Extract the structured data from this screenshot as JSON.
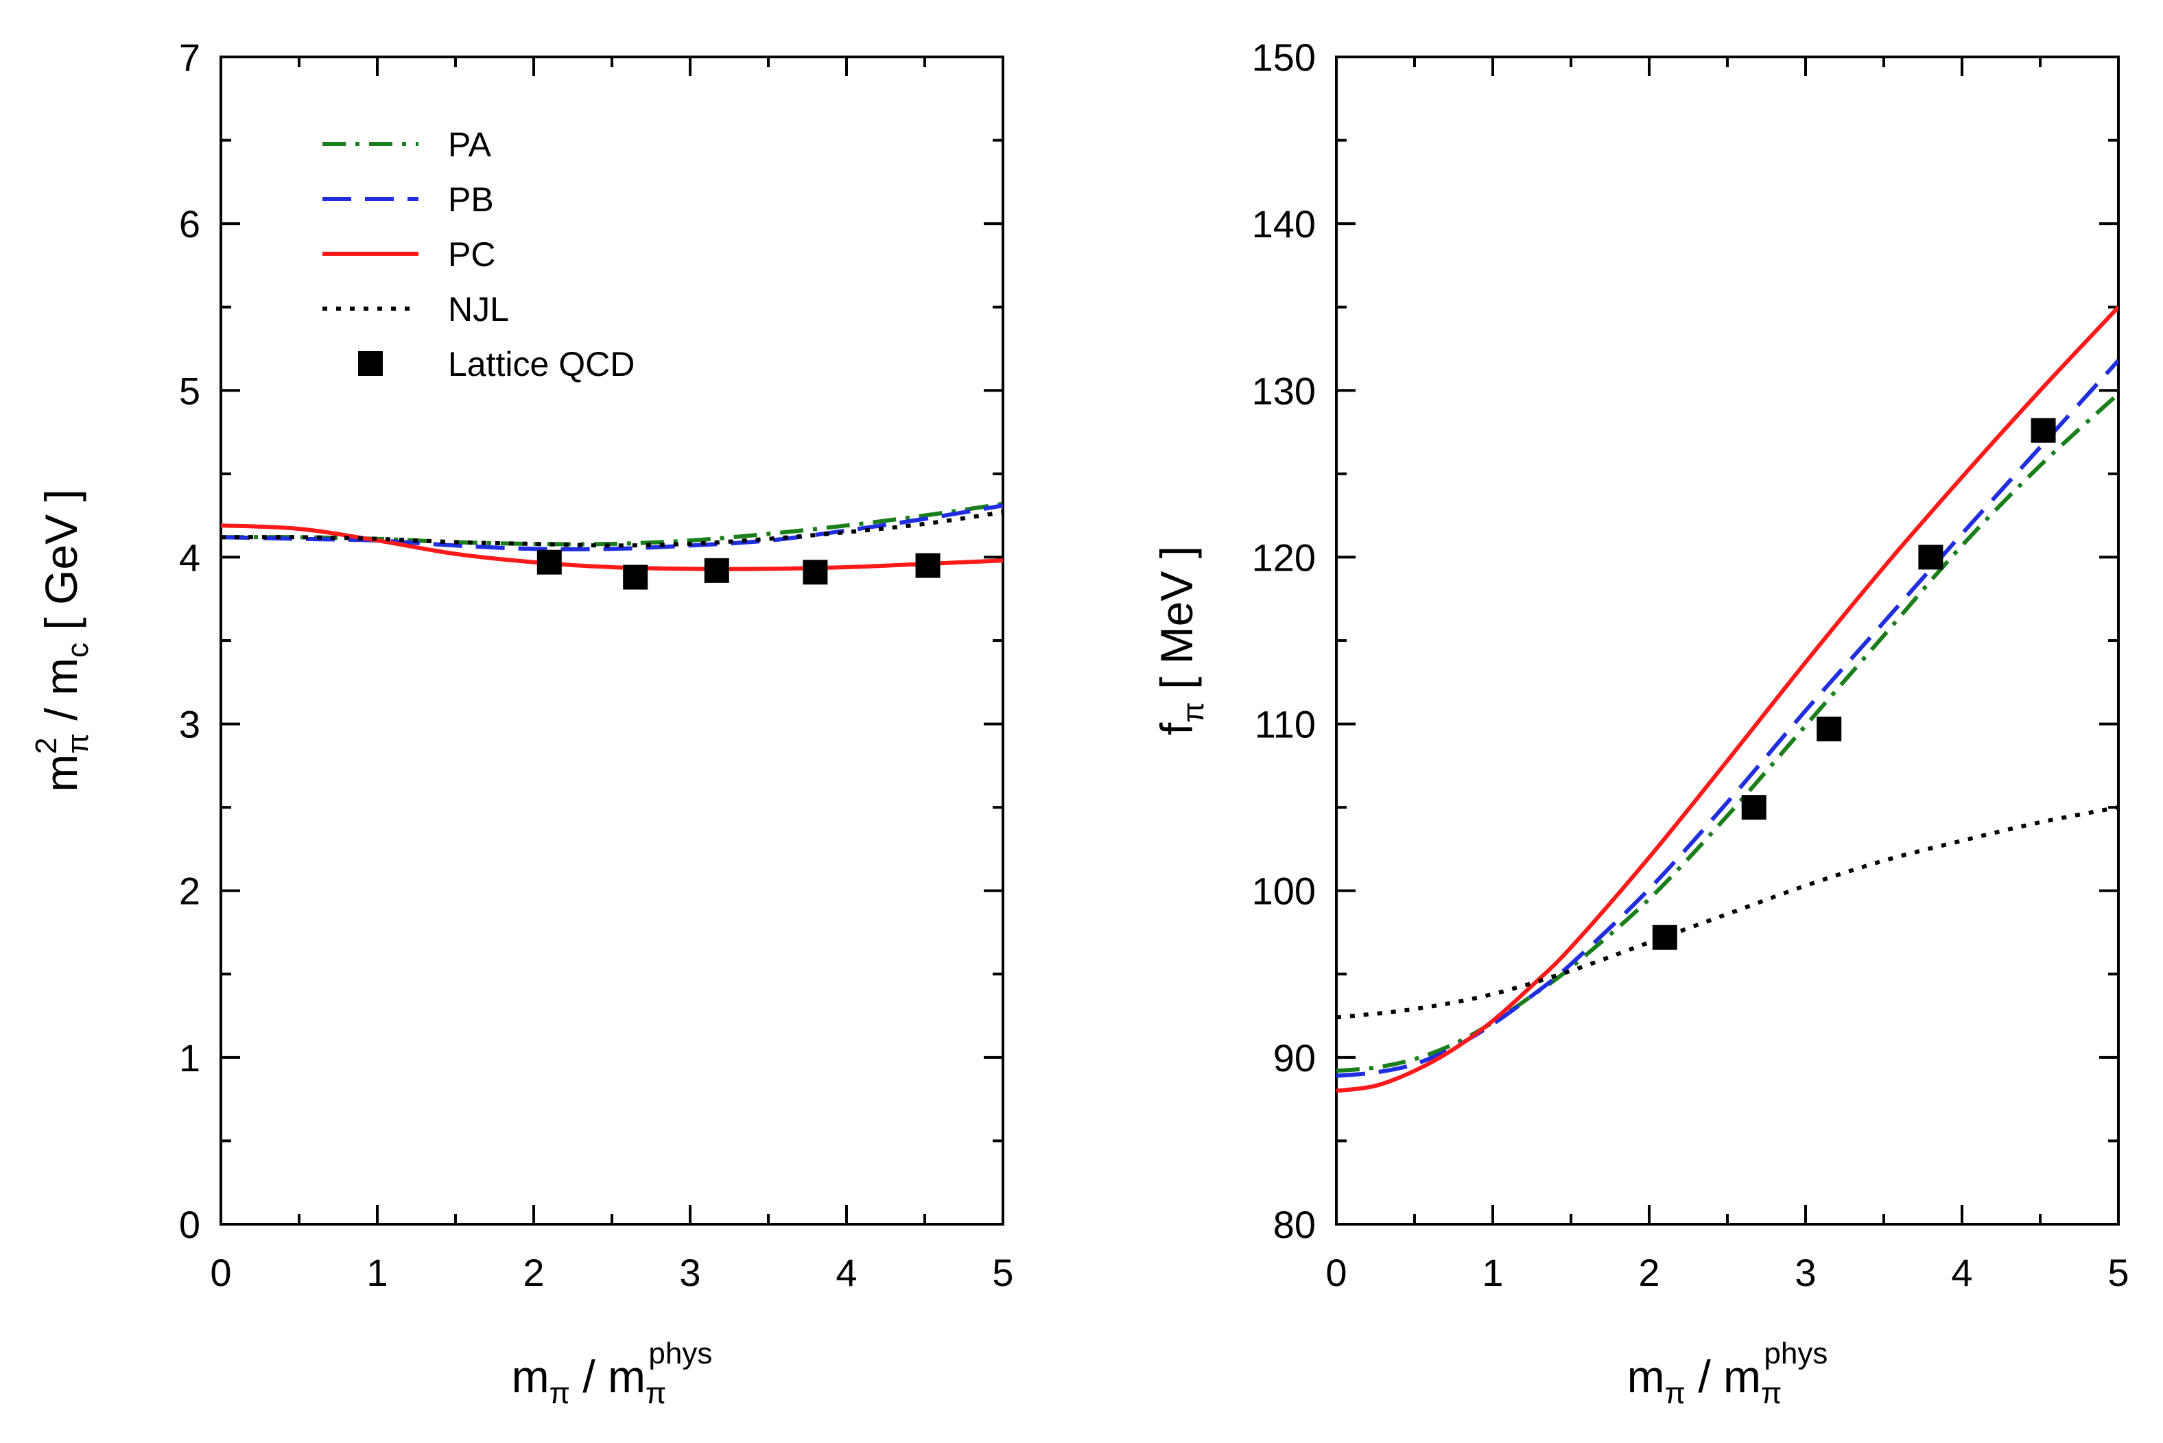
{
  "chart_data": [
    {
      "type": "line",
      "panel": "left",
      "xlabel": {
        "base": "m",
        "sub": "π",
        "slash": "/",
        "base2": "m",
        "sub2": "π",
        "sup2": "phys"
      },
      "ylabel": {
        "base": "m",
        "sup": "2",
        "sub": "π",
        "slash": "/",
        "base2": "m",
        "sub2": "c",
        "unit": "[ GeV ]"
      },
      "xlim": [
        0,
        5
      ],
      "ylim": [
        0,
        7
      ],
      "xticks": [
        "0",
        "1",
        "2",
        "3",
        "4",
        "5"
      ],
      "yticks": [
        "0",
        "1",
        "2",
        "3",
        "4",
        "5",
        "6",
        "7"
      ],
      "grid": false,
      "legend_position": "top-left",
      "legend": [
        {
          "key": "PA",
          "label": "PA"
        },
        {
          "key": "PB",
          "label": "PB"
        },
        {
          "key": "PC",
          "label": "PC"
        },
        {
          "key": "NJL",
          "label": "NJL"
        },
        {
          "key": "LQCD",
          "label": "Lattice QCD"
        }
      ],
      "series": [
        {
          "key": "PA",
          "name": "PA",
          "style": "dashdot",
          "color": "#1a7f1a",
          "x": [
            0,
            0.5,
            1,
            1.5,
            2,
            2.5,
            3,
            3.5,
            4,
            4.5,
            5
          ],
          "y": [
            4.12,
            4.12,
            4.11,
            4.09,
            4.08,
            4.08,
            4.1,
            4.14,
            4.19,
            4.25,
            4.32
          ]
        },
        {
          "key": "PB",
          "name": "PB",
          "style": "dashed",
          "color": "#1f2fe0",
          "x": [
            0,
            0.5,
            1,
            1.5,
            2,
            2.5,
            3,
            3.5,
            4,
            4.5,
            5
          ],
          "y": [
            4.12,
            4.11,
            4.1,
            4.07,
            4.05,
            4.05,
            4.07,
            4.1,
            4.16,
            4.23,
            4.31
          ]
        },
        {
          "key": "PC",
          "name": "PC",
          "style": "solid",
          "color": "#ff1a1a",
          "x": [
            0,
            0.5,
            1,
            1.5,
            2,
            2.5,
            3,
            3.5,
            4,
            4.5,
            5
          ],
          "y": [
            4.19,
            4.17,
            4.1,
            4.02,
            3.97,
            3.94,
            3.93,
            3.93,
            3.94,
            3.96,
            3.98
          ]
        },
        {
          "key": "NJL",
          "name": "NJL",
          "style": "dotted",
          "color": "#000000",
          "x": [
            0,
            0.5,
            1,
            1.5,
            2,
            2.5,
            3,
            3.5,
            4,
            4.5,
            5
          ],
          "y": [
            4.12,
            4.12,
            4.11,
            4.09,
            4.08,
            4.07,
            4.08,
            4.11,
            4.15,
            4.2,
            4.27
          ]
        },
        {
          "key": "LQCD",
          "name": "Lattice QCD",
          "style": "marker-square",
          "color": "#000000",
          "x": [
            2.1,
            2.65,
            3.17,
            3.8,
            4.52
          ],
          "y": [
            3.97,
            3.88,
            3.92,
            3.91,
            3.95
          ]
        }
      ]
    },
    {
      "type": "line",
      "panel": "right",
      "xlabel": {
        "base": "m",
        "sub": "π",
        "slash": "/",
        "base2": "m",
        "sub2": "π",
        "sup2": "phys"
      },
      "ylabel": {
        "base": "f",
        "sub": "π",
        "unit": "[ MeV ]"
      },
      "xlim": [
        0,
        5
      ],
      "ylim": [
        80,
        150
      ],
      "xticks": [
        "0",
        "1",
        "2",
        "3",
        "4",
        "5"
      ],
      "yticks": [
        "80",
        "90",
        "100",
        "110",
        "120",
        "130",
        "140",
        "150"
      ],
      "grid": false,
      "series": [
        {
          "key": "PA",
          "name": "PA",
          "style": "dashdot",
          "color": "#1a7f1a",
          "x": [
            0,
            0.25,
            0.5,
            0.75,
            1,
            1.25,
            1.5,
            2,
            2.5,
            3,
            3.5,
            4,
            4.5,
            5
          ],
          "y": [
            89.2,
            89.4,
            89.9,
            90.8,
            92.1,
            93.7,
            95.4,
            99.5,
            104.5,
            109.9,
            115.3,
            120.7,
            125.5,
            129.8
          ]
        },
        {
          "key": "PB",
          "name": "PB",
          "style": "dashed",
          "color": "#1f2fe0",
          "x": [
            0,
            0.25,
            0.5,
            0.75,
            1,
            1.25,
            1.5,
            2,
            2.5,
            3,
            3.5,
            4,
            4.5,
            5
          ],
          "y": [
            88.9,
            89.1,
            89.6,
            90.6,
            92.0,
            93.7,
            95.6,
            100.1,
            105.3,
            110.8,
            116.1,
            121.4,
            126.6,
            131.8
          ]
        },
        {
          "key": "PC",
          "name": "PC",
          "style": "solid",
          "color": "#ff1a1a",
          "x": [
            0,
            0.25,
            0.5,
            0.75,
            1,
            1.25,
            1.5,
            2,
            2.5,
            3,
            3.5,
            4,
            4.5,
            5
          ],
          "y": [
            88.0,
            88.3,
            89.2,
            90.5,
            92.2,
            94.3,
            96.6,
            102.0,
            107.8,
            113.7,
            119.4,
            124.8,
            130.0,
            135.0
          ]
        },
        {
          "key": "NJL",
          "name": "NJL",
          "style": "dotted",
          "color": "#000000",
          "x": [
            0,
            0.5,
            1,
            1.5,
            2,
            2.5,
            3,
            3.5,
            4,
            4.5,
            5
          ],
          "y": [
            92.4,
            92.9,
            93.8,
            95.2,
            96.9,
            98.6,
            100.3,
            101.8,
            103.0,
            104.1,
            105.0
          ]
        },
        {
          "key": "LQCD",
          "name": "Lattice QCD",
          "style": "marker-square",
          "color": "#000000",
          "x": [
            2.1,
            2.67,
            3.15,
            3.8,
            4.52
          ],
          "y": [
            97.2,
            105.0,
            109.7,
            120.0,
            127.6
          ]
        }
      ]
    }
  ]
}
